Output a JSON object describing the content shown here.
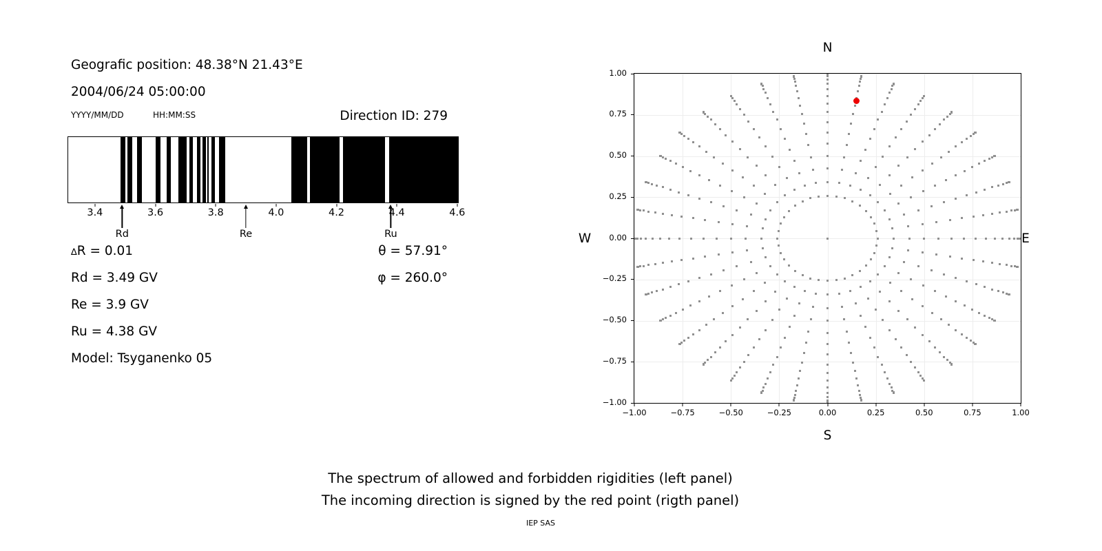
{
  "figure": {
    "caption_line1": "The spectrum of allowed and forbidden rigidities (left panel)",
    "caption_line2": "The incoming direction is signed by the red point (rigth panel)",
    "credit": "IEP SAS"
  },
  "header": {
    "geographic_position": "Geografic position: 48.38°N 21.43°E",
    "datetime": "2004/06/24 05:00:00",
    "date_format_hint": "YYYY/MM/DD",
    "time_format_hint": "HH:MM:SS",
    "direction_id": "Direction ID: 279"
  },
  "info_panel": {
    "delta_symbol": "∆",
    "delta_r_rest": "R = 0.01",
    "rd": "Rd = 3.49 GV",
    "re": "Re = 3.9 GV",
    "ru": "Ru = 4.38 GV",
    "model": "Model: Tsyganenko 05",
    "theta": "θ = 57.91°",
    "phi": "φ = 260.0°"
  },
  "colors": {
    "text": "#000000",
    "band": "#000000",
    "axis": "#000000",
    "grid": "#ededed",
    "dot": "#909090",
    "red_point": "#ee0000"
  },
  "chart_data": [
    {
      "type": "bar",
      "name": "rigidity-spectrum",
      "description": "Black bands = allowed rigidities, white gaps = forbidden rigidities, in GV",
      "xlim": [
        3.309,
        4.605
      ],
      "x_ticks": [
        3.4,
        3.6,
        3.8,
        4.0,
        4.2,
        4.4,
        4.6
      ],
      "x_tick_labels": [
        "3.4",
        "3.6",
        "3.8",
        "4.0",
        "4.2",
        "4.4",
        "4.6"
      ],
      "allowed_bands_GV": [
        [
          3.483,
          3.498
        ],
        [
          3.506,
          3.522
        ],
        [
          3.537,
          3.554
        ],
        [
          3.6,
          3.616
        ],
        [
          3.636,
          3.65
        ],
        [
          3.676,
          3.703
        ],
        [
          3.712,
          3.724
        ],
        [
          3.738,
          3.749
        ],
        [
          3.756,
          3.767
        ],
        [
          3.772,
          3.777
        ],
        [
          3.786,
          3.797
        ],
        [
          3.81,
          3.832
        ],
        [
          4.051,
          4.103
        ],
        [
          4.112,
          4.212
        ],
        [
          4.223,
          4.363
        ],
        [
          4.375,
          4.605
        ]
      ],
      "markers": [
        {
          "label": "Rd",
          "value_GV": 3.49
        },
        {
          "label": "Re",
          "value_GV": 3.9
        },
        {
          "label": "Ru",
          "value_GV": 4.38
        }
      ]
    },
    {
      "type": "scatter",
      "name": "incoming-direction-map",
      "xlim": [
        -1,
        1
      ],
      "ylim": [
        -1,
        1
      ],
      "ticks": [
        -1,
        -0.75,
        -0.5,
        -0.25,
        0,
        0.25,
        0.5,
        0.75,
        1
      ],
      "x_tick_labels": [
        "−1.00",
        "−0.75",
        "−0.50",
        "−0.25",
        "0.00",
        "0.25",
        "0.50",
        "0.75",
        "1.00"
      ],
      "y_tick_labels": [
        "1.00",
        "0.75",
        "0.50",
        "0.25",
        "0.00",
        "−0.25",
        "−0.50",
        "−0.75",
        "−1.00"
      ],
      "grid": true,
      "compass": {
        "top": "N",
        "bottom": "S",
        "left": "W",
        "right": "E"
      },
      "dot_grid": {
        "azimuth_deg_start": 0,
        "azimuth_deg_step": 10,
        "azimuth_count": 36,
        "zenith_deg_start": 15,
        "zenith_deg_step": 5,
        "zenith_deg_end": 90,
        "radius_rule": "sin(zenith)",
        "center_dot": true
      },
      "red_point": {
        "x": 0.15,
        "y": 0.835
      }
    }
  ]
}
